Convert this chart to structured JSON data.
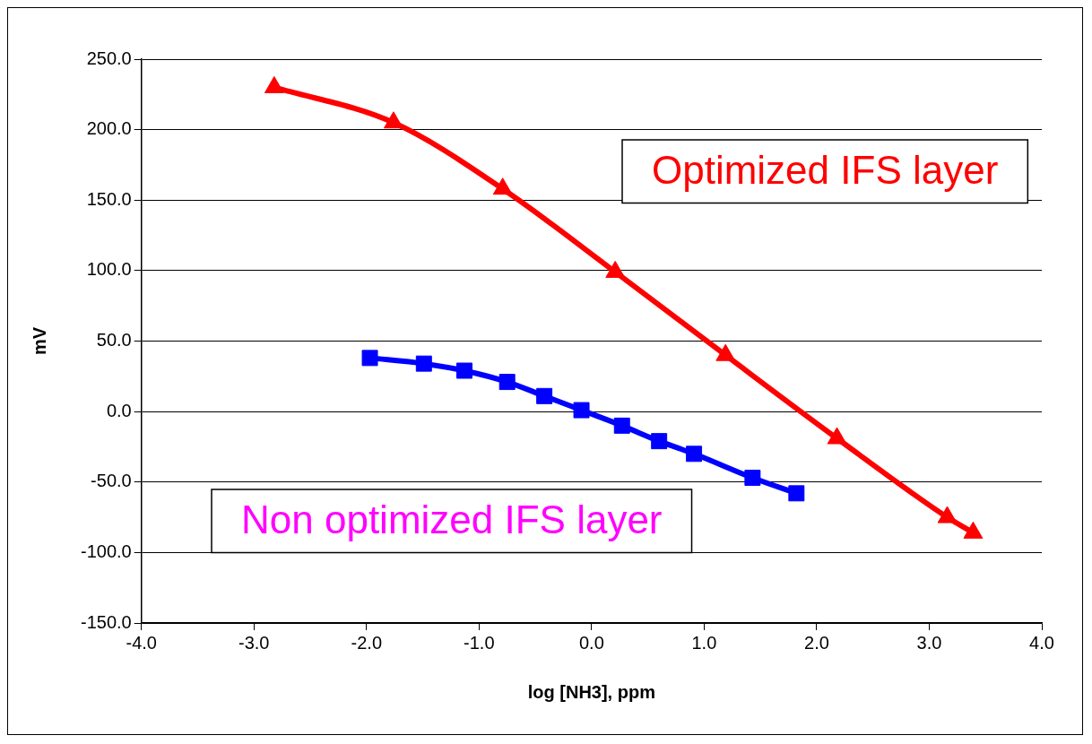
{
  "chart_data": {
    "type": "line",
    "xlabel": "log [NH3], ppm",
    "ylabel": "mV",
    "xlim": [
      -4,
      4
    ],
    "ylim": [
      -150,
      250
    ],
    "xticks": [
      {
        "value": -4,
        "label": "-4.0"
      },
      {
        "value": -3,
        "label": "-3.0"
      },
      {
        "value": -2,
        "label": "-2.0"
      },
      {
        "value": -1,
        "label": "-1.0"
      },
      {
        "value": 0,
        "label": "0.0"
      },
      {
        "value": 1,
        "label": "1.0"
      },
      {
        "value": 2,
        "label": "2.0"
      },
      {
        "value": 3,
        "label": "3.0"
      },
      {
        "value": 4,
        "label": "4.0"
      }
    ],
    "yticks": [
      {
        "value": -150,
        "label": "-150.0"
      },
      {
        "value": -100,
        "label": "-100.0"
      },
      {
        "value": -50,
        "label": "-50.0"
      },
      {
        "value": 0,
        "label": "0.0"
      },
      {
        "value": 50,
        "label": "50.0"
      },
      {
        "value": 100,
        "label": "100.0"
      },
      {
        "value": 150,
        "label": "150.0"
      },
      {
        "value": 200,
        "label": "200.0"
      },
      {
        "value": 250,
        "label": "250.0"
      }
    ],
    "grid": "y",
    "legend": false,
    "line_style": "solid",
    "series": [
      {
        "name": "Optimized IFS layer",
        "color": "#ff0000",
        "marker": "triangle",
        "x": [
          -2.82,
          -1.76,
          -0.79,
          0.21,
          1.19,
          2.18,
          3.16,
          3.39
        ],
        "values": [
          230,
          205,
          158,
          99,
          40,
          -19,
          -75,
          -86
        ]
      },
      {
        "name": "Non optimized IFS layer",
        "color": "#0000ff",
        "marker": "square",
        "x": [
          -1.97,
          -1.49,
          -1.13,
          -0.75,
          -0.42,
          -0.09,
          0.27,
          0.6,
          0.91,
          1.43,
          1.82
        ],
        "values": [
          38,
          34,
          29,
          21,
          11,
          1,
          -10,
          -21,
          -30,
          -47,
          -58
        ]
      }
    ]
  }
}
